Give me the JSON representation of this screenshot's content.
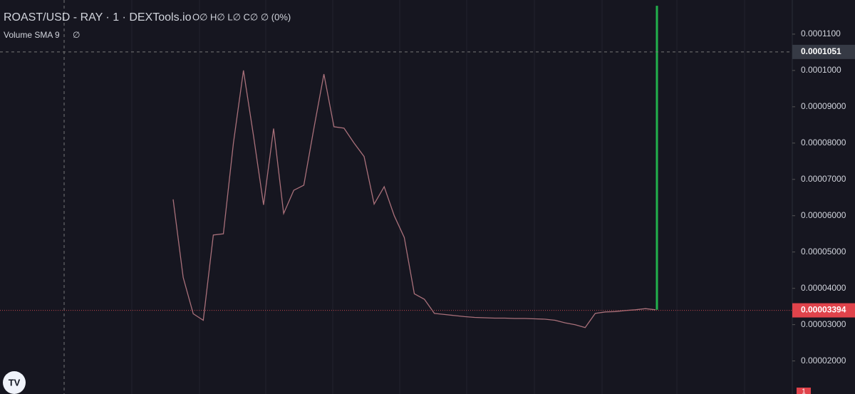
{
  "chart_data": {
    "type": "line",
    "title": "ROAST/USD - RAY · 1 · DEXTools.io",
    "ohlc": "O∅ H∅ L∅ C∅ ∅ (0%)",
    "indicator": "Volume SMA 9",
    "indicator_value": "∅",
    "badge": "1",
    "color": "#a9707a",
    "ylim": [
      1.09e-05,
      0.0001194
    ],
    "yticks": [
      {
        "value": 0.00011,
        "label": "0.0001100"
      },
      {
        "value": 0.0001,
        "label": "0.0001000"
      },
      {
        "value": 9e-05,
        "label": "0.00009000"
      },
      {
        "value": 8e-05,
        "label": "0.00008000"
      },
      {
        "value": 7e-05,
        "label": "0.00007000"
      },
      {
        "value": 6e-05,
        "label": "0.00006000"
      },
      {
        "value": 5e-05,
        "label": "0.00005000"
      },
      {
        "value": 4e-05,
        "label": "0.00004000"
      },
      {
        "value": 3e-05,
        "label": "0.00003000"
      },
      {
        "value": 2e-05,
        "label": "0.00002000"
      }
    ],
    "values": [
      6.45e-05,
      4.3e-05,
      3.3e-05,
      3.12e-05,
      5.47e-05,
      5.5e-05,
      8e-05,
      0.0001,
      8.2e-05,
      6.3e-05,
      8.4e-05,
      6.06e-05,
      6.7e-05,
      6.84e-05,
      8.4e-05,
      9.9e-05,
      8.45e-05,
      8.41e-05,
      8e-05,
      7.63e-05,
      6.32e-05,
      6.8e-05,
      6e-05,
      5.4e-05,
      3.85e-05,
      3.7e-05,
      3.31e-05,
      3.28e-05,
      3.25e-05,
      3.22e-05,
      3.2e-05,
      3.19e-05,
      3.18e-05,
      3.18e-05,
      3.17e-05,
      3.17e-05,
      3.16e-05,
      3.15e-05,
      3.12e-05,
      3.05e-05,
      3e-05,
      2.92e-05,
      3.31e-05,
      3.35e-05,
      3.36e-05,
      3.39e-05,
      3.41e-05,
      3.44e-05,
      3.41e-05
    ],
    "spike": {
      "low": 3.41e-05,
      "high": 0.0001178,
      "color": "#22b14c"
    },
    "last_price": 3.394e-05,
    "crosshair_price": 0.0001051
  }
}
